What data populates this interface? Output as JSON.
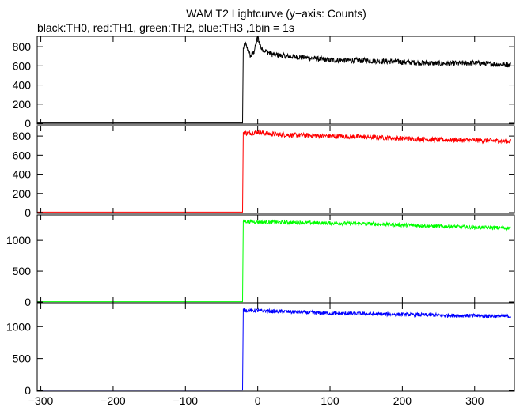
{
  "chart_data": {
    "type": "line",
    "title": "WAM T2 Lightcurve (y−axis: Counts)",
    "subtitle": "black:TH0, red:TH1, green:TH2, blue:TH3 ,1bin = 1s",
    "xlim": [
      -305,
      355
    ],
    "x_ticks": [
      -300,
      -200,
      -100,
      0,
      100,
      200,
      300
    ],
    "x_tick_labels": [
      "−300",
      "−200",
      "−100",
      "0",
      "100",
      "200",
      "300"
    ],
    "grid": false,
    "legend": "none",
    "panels": [
      {
        "name": "TH0",
        "color": "#000000",
        "ylim": [
          0,
          900
        ],
        "y_ticks": [
          0,
          200,
          400,
          600,
          800
        ],
        "points": [
          [
            -305,
            3
          ],
          [
            -21,
            3
          ],
          [
            -20,
            780
          ],
          [
            -17,
            830
          ],
          [
            -10,
            700
          ],
          [
            -5,
            750
          ],
          [
            0,
            900
          ],
          [
            5,
            780
          ],
          [
            10,
            760
          ],
          [
            20,
            720
          ],
          [
            40,
            700
          ],
          [
            60,
            690
          ],
          [
            100,
            660
          ],
          [
            150,
            655
          ],
          [
            200,
            640
          ],
          [
            250,
            625
          ],
          [
            300,
            630
          ],
          [
            350,
            610
          ]
        ],
        "noise": 28
      },
      {
        "name": "TH1",
        "color": "#ff0000",
        "ylim": [
          0,
          900
        ],
        "y_ticks": [
          0,
          200,
          400,
          600,
          800
        ],
        "points": [
          [
            -305,
            5
          ],
          [
            -21,
            5
          ],
          [
            -20,
            840
          ],
          [
            -15,
            830
          ],
          [
            0,
            840
          ],
          [
            20,
            820
          ],
          [
            50,
            810
          ],
          [
            100,
            800
          ],
          [
            150,
            790
          ],
          [
            200,
            775
          ],
          [
            250,
            760
          ],
          [
            300,
            755
          ],
          [
            350,
            745
          ]
        ],
        "noise": 25
      },
      {
        "name": "TH2",
        "color": "#00ff00",
        "ylim": [
          0,
          1400
        ],
        "y_ticks": [
          0,
          500,
          1000
        ],
        "points": [
          [
            -305,
            5
          ],
          [
            -21,
            5
          ],
          [
            -20,
            1310
          ],
          [
            0,
            1300
          ],
          [
            50,
            1290
          ],
          [
            100,
            1280
          ],
          [
            150,
            1270
          ],
          [
            200,
            1250
          ],
          [
            250,
            1230
          ],
          [
            300,
            1210
          ],
          [
            350,
            1200
          ]
        ],
        "noise": 30
      },
      {
        "name": "TH3",
        "color": "#0000ff",
        "ylim": [
          0,
          1350
        ],
        "y_ticks": [
          0,
          500,
          1000
        ],
        "points": [
          [
            -305,
            5
          ],
          [
            -21,
            5
          ],
          [
            -20,
            1260
          ],
          [
            0,
            1250
          ],
          [
            50,
            1230
          ],
          [
            100,
            1210
          ],
          [
            150,
            1200
          ],
          [
            200,
            1190
          ],
          [
            250,
            1180
          ],
          [
            300,
            1170
          ],
          [
            350,
            1160
          ]
        ],
        "noise": 30
      }
    ]
  }
}
